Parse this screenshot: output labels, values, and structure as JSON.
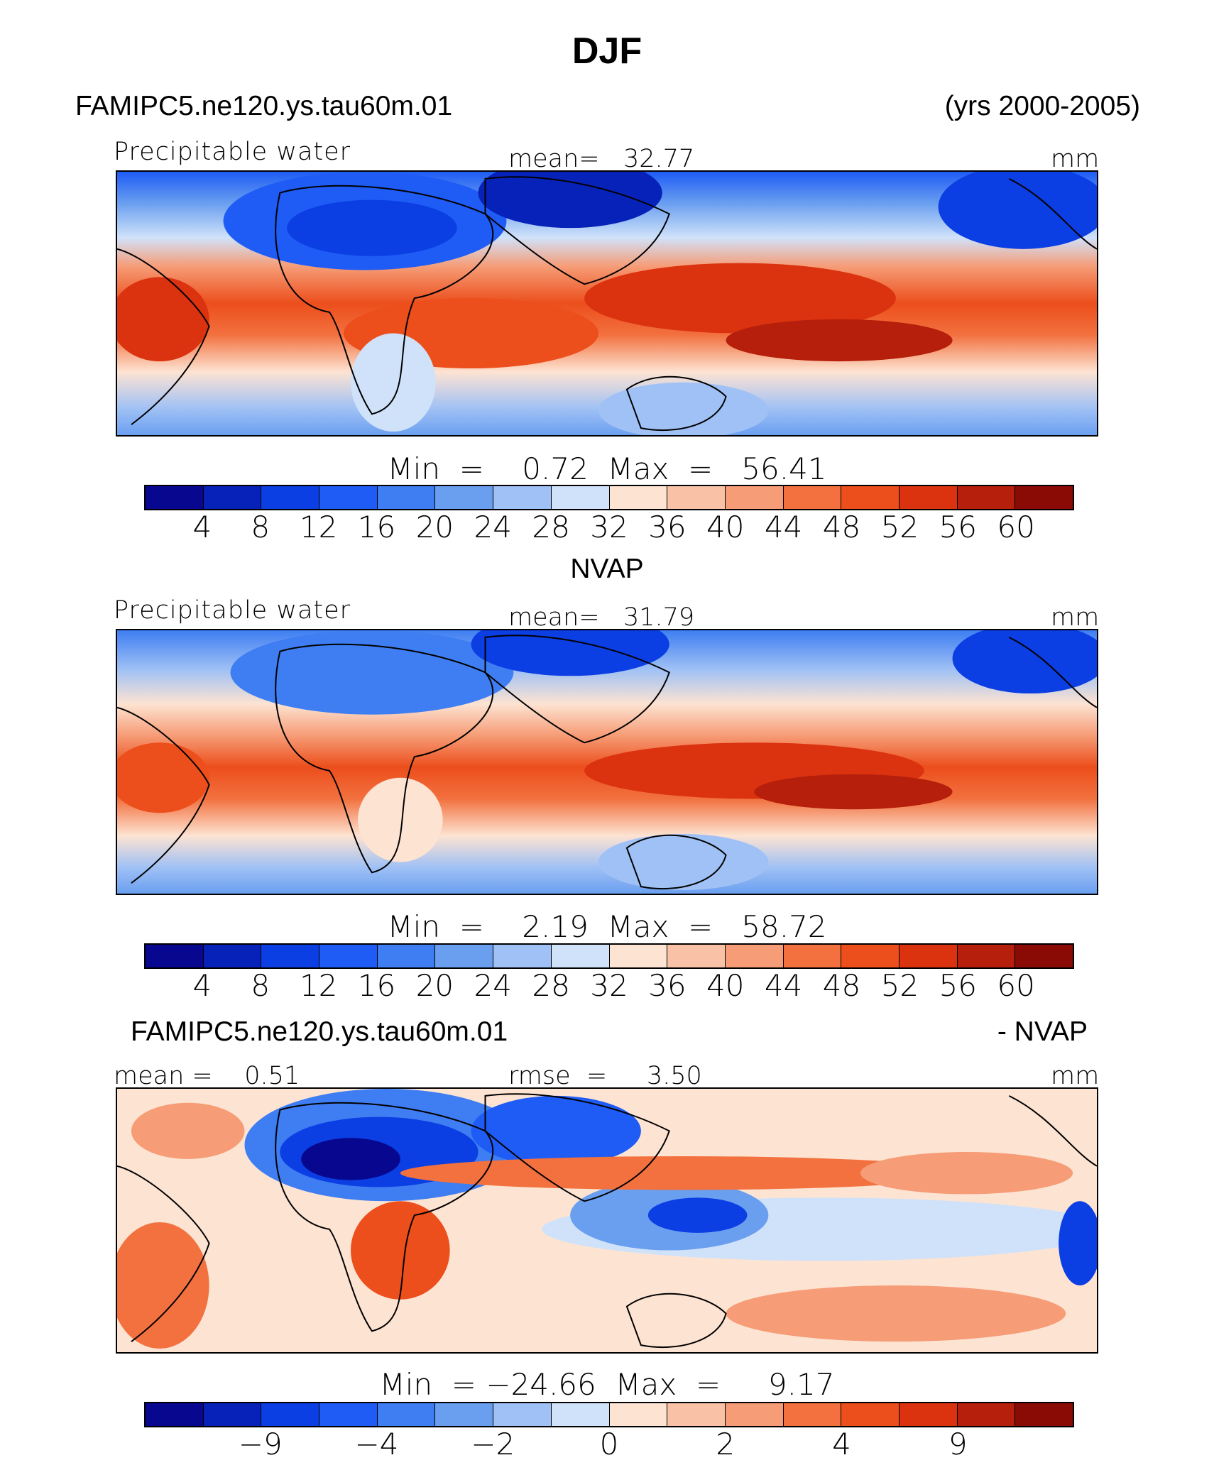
{
  "header": {
    "season": "DJF",
    "case_name": "FAMIPC5.ne120.ys.tau60m.01",
    "years": "(yrs 2000-2005)"
  },
  "colors": [
    "#08078f",
    "#0622b8",
    "#0b3ee3",
    "#1e5cf5",
    "#3e7ef2",
    "#6a9ff0",
    "#a0c1f5",
    "#d0e2fa",
    "#fde3d2",
    "#f9c2a6",
    "#f69c76",
    "#f2713f",
    "#ec4e1c",
    "#db3310",
    "#b51f0b",
    "#8a0b06"
  ],
  "panels": [
    {
      "name": "model",
      "left_label": "Precipitable water",
      "center_label": "mean=   32.77",
      "units": "mm",
      "minmax": "Min  =    0.72  Max  =   56.41",
      "ticks": [
        "4",
        "8",
        "12",
        "16",
        "20",
        "24",
        "28",
        "32",
        "36",
        "40",
        "44",
        "48",
        "52",
        "56",
        "60"
      ]
    },
    {
      "name": "obs",
      "title": "NVAP",
      "left_label": "Precipitable water",
      "center_label": "mean=   31.79",
      "units": "mm",
      "minmax": "Min  =    2.19  Max  =   58.72",
      "ticks": [
        "4",
        "8",
        "12",
        "16",
        "20",
        "24",
        "28",
        "32",
        "36",
        "40",
        "44",
        "48",
        "52",
        "56",
        "60"
      ]
    },
    {
      "name": "diff",
      "title_left": "FAMIPC5.ne120.ys.tau60m.01",
      "title_right": "- NVAP",
      "left_label": "mean =    0.51",
      "center_label": "rmse  =     3.50",
      "units": "mm",
      "minmax": "Min  = −24.66  Max  =     9.17",
      "ticks": [
        "−9",
        "−4",
        "−2",
        "0",
        "2",
        "4",
        "9"
      ]
    }
  ],
  "chart_data": [
    {
      "type": "heatmap",
      "title": "Precipitable water",
      "subtitle": "FAMIPC5.ne120.ys.tau60m.01 (yrs 2000-2005)",
      "season": "DJF",
      "units": "mm",
      "mean": 32.77,
      "min": 0.72,
      "max": 56.41,
      "contour_levels": [
        4,
        8,
        12,
        16,
        20,
        24,
        28,
        32,
        36,
        40,
        44,
        48,
        52,
        56,
        60
      ]
    },
    {
      "type": "heatmap",
      "title": "Precipitable water",
      "subtitle": "NVAP",
      "season": "DJF",
      "units": "mm",
      "mean": 31.79,
      "min": 2.19,
      "max": 58.72,
      "contour_levels": [
        4,
        8,
        12,
        16,
        20,
        24,
        28,
        32,
        36,
        40,
        44,
        48,
        52,
        56,
        60
      ]
    },
    {
      "type": "heatmap",
      "title": "FAMIPC5.ne120.ys.tau60m.01 - NVAP",
      "season": "DJF",
      "units": "mm",
      "mean": 0.51,
      "rmse": 3.5,
      "min": -24.66,
      "max": 9.17,
      "colorbar_labels": [
        -9,
        -4,
        -2,
        0,
        2,
        4,
        9
      ]
    }
  ]
}
